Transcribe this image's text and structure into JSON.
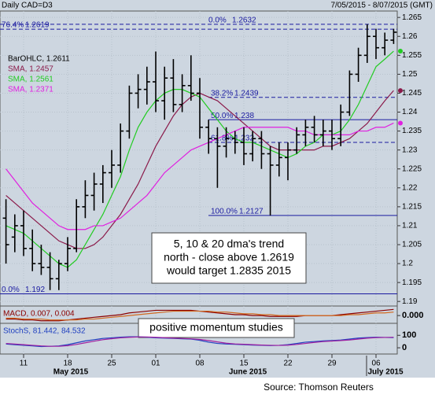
{
  "chart_data": [
    {
      "type": "ohlc",
      "title": "Daily CAD=D3",
      "subtitle": "7/05/2015 - 8/07/2015 (GMT)",
      "categories": [
        null,
        null,
        "11",
        null,
        null,
        null,
        null,
        "18",
        null,
        null,
        null,
        null,
        "25",
        null,
        null,
        null,
        null,
        "01",
        null,
        null,
        null,
        null,
        "08",
        null,
        null,
        null,
        null,
        "15",
        null,
        null,
        null,
        null,
        "22",
        null,
        null,
        null,
        null,
        "29",
        null,
        null,
        null,
        null,
        "06",
        null,
        null
      ],
      "months": [
        "May 2015",
        "June 2015",
        "July 2015"
      ],
      "ylim": [
        1.189,
        1.2667
      ],
      "yticks": [
        1.19,
        1.195,
        1.2,
        1.205,
        1.21,
        1.215,
        1.22,
        1.225,
        1.23,
        1.235,
        1.24,
        1.245,
        1.25,
        1.255,
        1.26,
        1.265
      ],
      "grid": true,
      "ohlc": {
        "name": "BarOHLC, 1.2611",
        "color": "#000000",
        "open": [
          1.212,
          1.207,
          1.21,
          1.204,
          1.2,
          1.199,
          1.196,
          1.2,
          1.204,
          1.215,
          1.218,
          1.221,
          1.224,
          1.226,
          1.235,
          1.245,
          1.246,
          1.248,
          1.243,
          1.249,
          1.242,
          1.247,
          1.245,
          1.236,
          1.233,
          1.231,
          1.233,
          1.232,
          1.229,
          1.233,
          1.229,
          1.226,
          1.228,
          1.23,
          1.234,
          1.236,
          1.234,
          1.235,
          1.233,
          1.24,
          1.25,
          1.255,
          1.26,
          1.257,
          1.259
        ],
        "high": [
          1.217,
          1.213,
          1.214,
          1.209,
          1.205,
          1.203,
          1.201,
          1.207,
          1.217,
          1.222,
          1.224,
          1.226,
          1.23,
          1.237,
          1.247,
          1.25,
          1.252,
          1.256,
          1.252,
          1.254,
          1.25,
          1.255,
          1.249,
          1.238,
          1.236,
          1.236,
          1.235,
          1.236,
          1.235,
          1.235,
          1.231,
          1.232,
          1.232,
          1.236,
          1.238,
          1.239,
          1.238,
          1.238,
          1.242,
          1.251,
          1.257,
          1.2632,
          1.262,
          1.261,
          1.262
        ],
        "low": [
          1.2,
          1.203,
          1.202,
          1.198,
          1.197,
          1.193,
          1.193,
          1.198,
          1.203,
          1.212,
          1.214,
          1.216,
          1.22,
          1.224,
          1.233,
          1.241,
          1.242,
          1.24,
          1.238,
          1.24,
          1.24,
          1.243,
          1.233,
          1.229,
          1.22,
          1.228,
          1.229,
          1.226,
          1.227,
          1.225,
          1.2127,
          1.223,
          1.222,
          1.229,
          1.231,
          1.232,
          1.231,
          1.23,
          1.231,
          1.239,
          1.248,
          1.253,
          1.254,
          1.255,
          1.258
        ],
        "close": [
          1.205,
          1.21,
          1.204,
          1.2,
          1.199,
          1.196,
          1.2,
          1.204,
          1.215,
          1.218,
          1.221,
          1.224,
          1.226,
          1.235,
          1.245,
          1.246,
          1.248,
          1.243,
          1.249,
          1.242,
          1.247,
          1.245,
          1.236,
          1.233,
          1.231,
          1.233,
          1.232,
          1.229,
          1.233,
          1.229,
          1.226,
          1.228,
          1.23,
          1.234,
          1.236,
          1.234,
          1.235,
          1.233,
          1.24,
          1.25,
          1.255,
          1.26,
          1.257,
          1.259,
          1.2611
        ]
      },
      "series": [
        {
          "name": "SMA, 1.2457",
          "color": "#8b1a4a",
          "values": [
            1.218,
            1.216,
            1.214,
            1.212,
            1.21,
            1.208,
            1.206,
            1.205,
            1.204,
            1.204,
            1.205,
            1.207,
            1.21,
            1.213,
            1.217,
            1.221,
            1.226,
            1.231,
            1.235,
            1.239,
            1.242,
            1.244,
            1.245,
            1.244,
            1.243,
            1.241,
            1.239,
            1.237,
            1.235,
            1.233,
            1.231,
            1.23,
            1.23,
            1.23,
            1.23,
            1.23,
            1.231,
            1.231,
            1.232,
            1.233,
            1.235,
            1.237,
            1.24,
            1.243,
            1.2457
          ]
        },
        {
          "name": "SMA, 1.2561",
          "color": "#22cc22",
          "values": [
            1.21,
            1.209,
            1.208,
            1.206,
            1.204,
            1.202,
            1.2,
            1.199,
            1.201,
            1.205,
            1.209,
            1.213,
            1.218,
            1.223,
            1.23,
            1.236,
            1.24,
            1.243,
            1.245,
            1.246,
            1.246,
            1.245,
            1.244,
            1.241,
            1.238,
            1.235,
            1.233,
            1.232,
            1.232,
            1.231,
            1.23,
            1.229,
            1.228,
            1.229,
            1.231,
            1.232,
            1.234,
            1.234,
            1.235,
            1.238,
            1.242,
            1.247,
            1.252,
            1.254,
            1.2561
          ]
        },
        {
          "name": "SMA, 1.2371",
          "color": "#e020e0",
          "values": [
            1.225,
            1.222,
            1.219,
            1.216,
            1.214,
            1.212,
            1.21,
            1.209,
            1.209,
            1.209,
            1.21,
            1.21,
            1.211,
            1.212,
            1.214,
            1.216,
            1.218,
            1.221,
            1.224,
            1.226,
            1.228,
            1.23,
            1.231,
            1.232,
            1.233,
            1.234,
            1.235,
            1.236,
            1.236,
            1.236,
            1.236,
            1.236,
            1.236,
            1.235,
            1.235,
            1.234,
            1.234,
            1.234,
            1.234,
            1.234,
            1.235,
            1.235,
            1.236,
            1.236,
            1.2371
          ]
        }
      ],
      "fib_levels": [
        {
          "label": "0.0%",
          "value": 1.2632
        },
        {
          "label": "76.4%",
          "value": 1.2619
        },
        {
          "label": "38.2%",
          "value": 1.2439
        },
        {
          "label": "50.0%",
          "value": 1.238
        },
        {
          "label": "61.8%",
          "value": 1.232
        },
        {
          "label": "100.0%",
          "value": 1.2127
        },
        {
          "label": "0.0%",
          "value": 1.192
        }
      ],
      "note": [
        "5, 10 & 20 dma's trend",
        "north - close above 1.2619",
        "would target 1.2835 2015"
      ],
      "note2": "positive momentum studies"
    },
    {
      "type": "line",
      "title": "MACD, 0.007, 0.004",
      "ylim": [
        -0.008,
        0.01
      ],
      "yticks": [
        {
          "value": 0,
          "label": "0.000"
        }
      ],
      "series": [
        {
          "color": "#8b0000",
          "values": [
            -0.004,
            -0.004,
            -0.005,
            -0.005,
            -0.006,
            -0.006,
            -0.006,
            -0.005,
            -0.004,
            -0.003,
            -0.002,
            -0.001,
            0,
            0.001,
            0.003,
            0.004,
            0.005,
            0.006,
            0.006,
            0.006,
            0.006,
            0.006,
            0.005,
            0.004,
            0.003,
            0.002,
            0.001,
            0.001,
            0,
            0,
            -0.001,
            -0.001,
            -0.001,
            -0.001,
            0,
            0,
            0,
            0,
            0.001,
            0.002,
            0.003,
            0.004,
            0.005,
            0.006,
            0.007
          ]
        },
        {
          "color": "#d2691e",
          "values": [
            -0.003,
            -0.003,
            -0.004,
            -0.004,
            -0.004,
            -0.005,
            -0.005,
            -0.005,
            -0.005,
            -0.004,
            -0.004,
            -0.003,
            -0.002,
            -0.001,
            0,
            0.001,
            0.002,
            0.003,
            0.004,
            0.005,
            0.005,
            0.005,
            0.005,
            0.005,
            0.004,
            0.004,
            0.003,
            0.002,
            0.002,
            0.001,
            0.001,
            0,
            0,
            0,
            0,
            0,
            0,
            0,
            0,
            0.001,
            0.001,
            0.002,
            0.003,
            0.003,
            0.004
          ]
        }
      ]
    },
    {
      "type": "line",
      "title": "StochS, 81.442, 84.532",
      "ylim": [
        -50,
        190
      ],
      "yticks": [
        0,
        100
      ],
      "series": [
        {
          "color": "#2040c0",
          "values": [
            30,
            25,
            20,
            15,
            10,
            12,
            15,
            25,
            40,
            55,
            65,
            75,
            80,
            85,
            88,
            88,
            85,
            80,
            78,
            75,
            72,
            70,
            60,
            45,
            35,
            30,
            28,
            25,
            22,
            20,
            18,
            20,
            25,
            35,
            45,
            50,
            55,
            58,
            62,
            70,
            78,
            82,
            85,
            83,
            81.442
          ]
        },
        {
          "color": "#a020a0",
          "values": [
            35,
            30,
            25,
            20,
            15,
            12,
            12,
            17,
            27,
            40,
            53,
            65,
            73,
            80,
            84,
            87,
            87,
            84,
            81,
            78,
            75,
            72,
            67,
            58,
            47,
            37,
            31,
            28,
            25,
            22,
            20,
            19,
            21,
            27,
            35,
            43,
            50,
            54,
            58,
            63,
            70,
            77,
            82,
            83,
            84.532
          ]
        }
      ]
    }
  ],
  "source": "Source: Thomson Reuters"
}
